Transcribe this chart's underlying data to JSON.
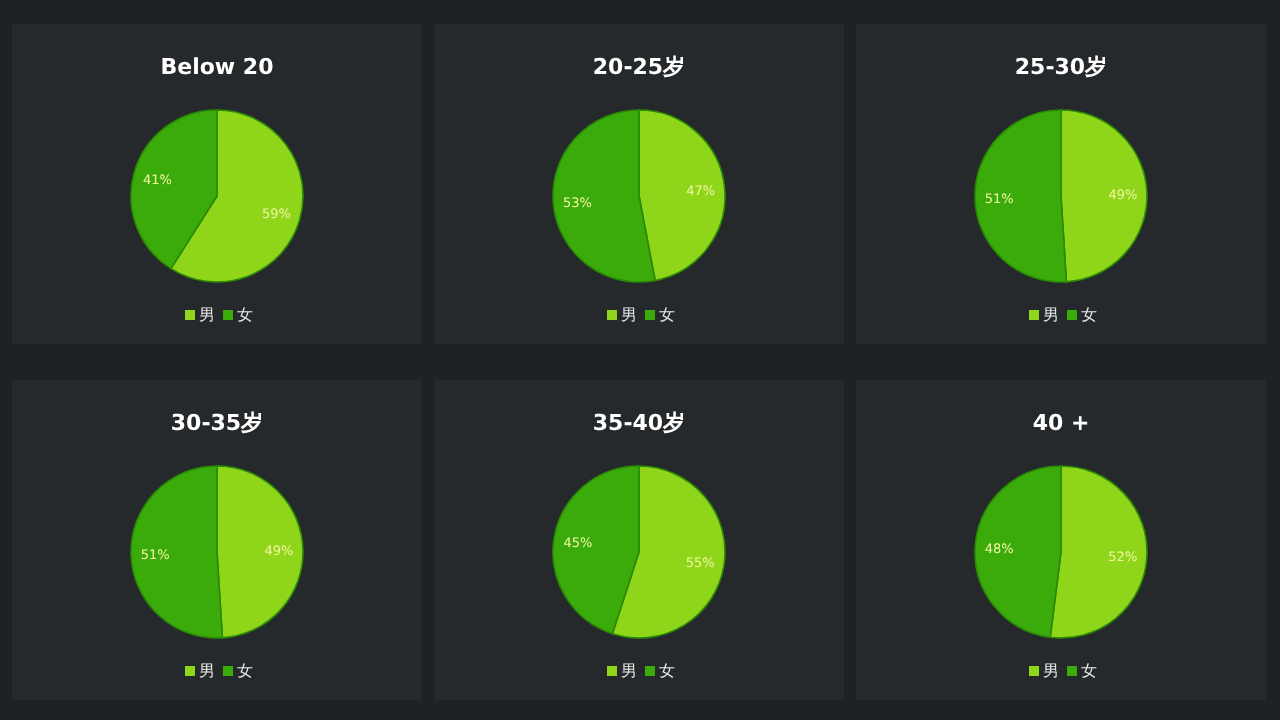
{
  "chart_data": [
    {
      "type": "pie",
      "title": "Below 20",
      "categories": [
        "男",
        "女"
      ],
      "values": [
        59,
        41
      ],
      "value_labels": [
        "59%",
        "41%"
      ],
      "colors": [
        "#8fd61a",
        "#3aab0a"
      ],
      "legend": "bottom"
    },
    {
      "type": "pie",
      "title": "20-25岁",
      "categories": [
        "男",
        "女"
      ],
      "values": [
        47,
        53
      ],
      "value_labels": [
        "47%",
        "53%"
      ],
      "colors": [
        "#8fd61a",
        "#3aab0a"
      ],
      "legend": "bottom"
    },
    {
      "type": "pie",
      "title": "25-30岁",
      "categories": [
        "男",
        "女"
      ],
      "values": [
        49,
        51
      ],
      "value_labels": [
        "49%",
        "51%"
      ],
      "colors": [
        "#8fd61a",
        "#3aab0a"
      ],
      "legend": "bottom"
    },
    {
      "type": "pie",
      "title": "30-35岁",
      "categories": [
        "男",
        "女"
      ],
      "values": [
        49,
        51
      ],
      "value_labels": [
        "49%",
        "51%"
      ],
      "colors": [
        "#8fd61a",
        "#3aab0a"
      ],
      "legend": "bottom"
    },
    {
      "type": "pie",
      "title": "35-40岁",
      "categories": [
        "男",
        "女"
      ],
      "values": [
        55,
        45
      ],
      "value_labels": [
        "55%",
        "45%"
      ],
      "colors": [
        "#8fd61a",
        "#3aab0a"
      ],
      "legend": "bottom"
    },
    {
      "type": "pie",
      "title": "40 +",
      "categories": [
        "男",
        "女"
      ],
      "values": [
        52,
        48
      ],
      "value_labels": [
        "52%",
        "48%"
      ],
      "colors": [
        "#8fd61a",
        "#3aab0a"
      ],
      "legend": "bottom"
    }
  ]
}
